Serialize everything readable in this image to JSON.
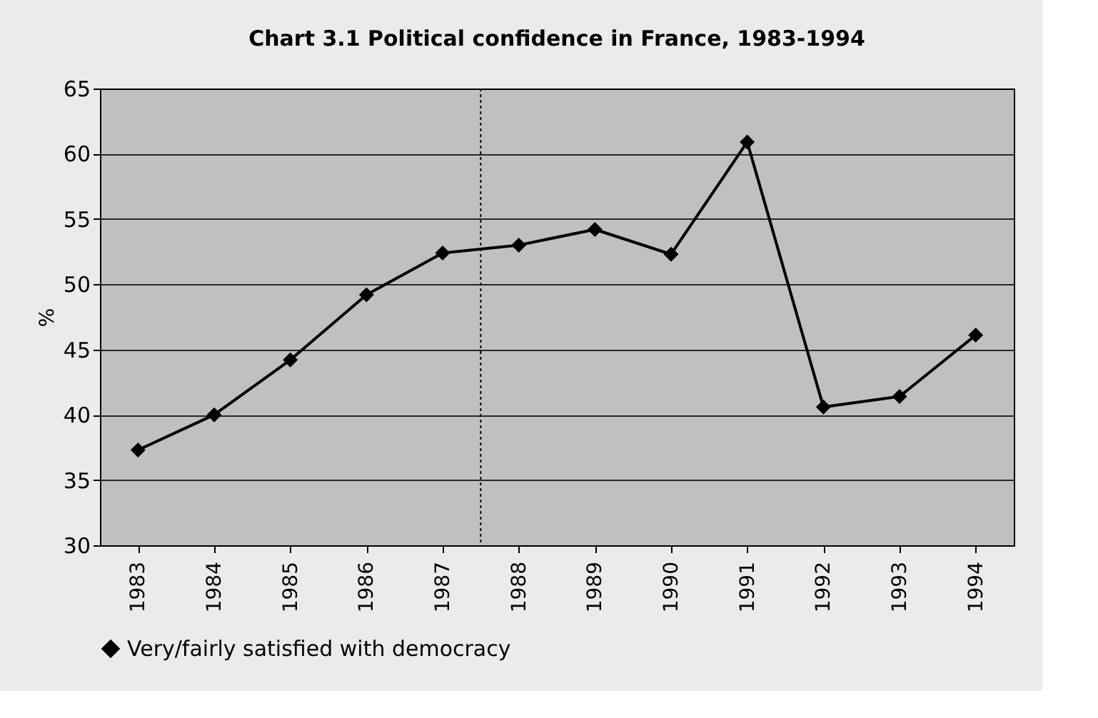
{
  "chart_data": {
    "type": "line",
    "title": "Chart 3.1  Political confidence in France, 1983-1994",
    "ylabel": "%",
    "x": [
      1983,
      1984,
      1985,
      1986,
      1987,
      1988,
      1989,
      1990,
      1991,
      1992,
      1993,
      1994
    ],
    "xlim": [
      1982.5,
      1994.5
    ],
    "xticks": [
      1983,
      1984,
      1985,
      1986,
      1987,
      1988,
      1989,
      1990,
      1991,
      1992,
      1993,
      1994
    ],
    "ylim": [
      30,
      65
    ],
    "yticks": [
      30,
      35,
      40,
      45,
      50,
      55,
      60,
      65
    ],
    "series": [
      {
        "name": "Very/fairly satisfied with democracy",
        "color": "#000000",
        "values": [
          37.3,
          40.0,
          44.2,
          49.2,
          52.4,
          53.0,
          54.2,
          52.3,
          60.9,
          40.6,
          41.4,
          46.1
        ]
      }
    ],
    "ref_lines": [
      {
        "axis": "x",
        "value": 1987.5,
        "color": "#000000",
        "line_style": "dotted"
      }
    ],
    "grid": "y",
    "legend": "bottom",
    "marker": "diamond",
    "line_style": "solid"
  }
}
